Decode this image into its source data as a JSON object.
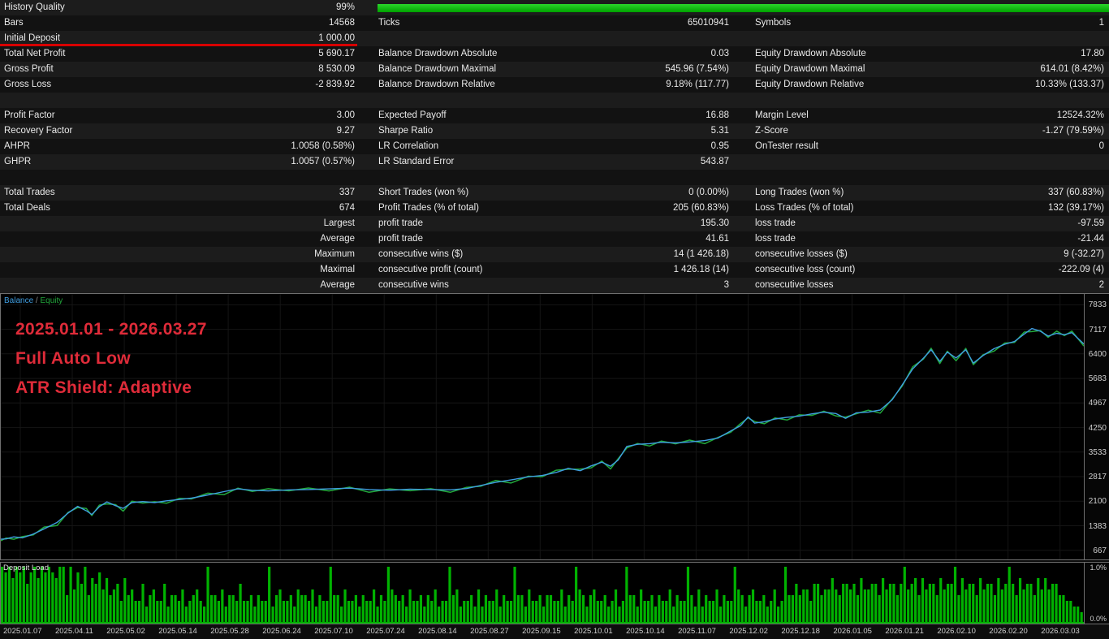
{
  "colors": {
    "balance": "#3f9de0",
    "equity": "#22a83c",
    "deposit": "#00b200",
    "hq_bar": "#00a300",
    "hq_bar_light": "#2bd52b",
    "marker_red": "#d80000",
    "annotation": "#df2b39",
    "grid": "#151515",
    "axis_text": "#cfcfcf"
  },
  "stats": {
    "rows": [
      {
        "c1l": "History Quality",
        "c1v": "99%",
        "bar": true
      },
      {
        "c1l": "Bars",
        "c1v": "14568",
        "c2l": "Ticks",
        "c2v": "65010941",
        "c3l": "Symbols",
        "c3v": "1"
      },
      {
        "c1l": "Initial Deposit",
        "c1v": "1 000.00",
        "underline": true
      },
      {
        "c1l": "Total Net Profit",
        "c1v": "5 690.17",
        "c2l": "Balance Drawdown Absolute",
        "c2v": "0.03",
        "c3l": "Equity Drawdown Absolute",
        "c3v": "17.80"
      },
      {
        "c1l": "Gross Profit",
        "c1v": "8 530.09",
        "c2l": "Balance Drawdown Maximal",
        "c2v": "545.96 (7.54%)",
        "c3l": "Equity Drawdown Maximal",
        "c3v": "614.01 (8.42%)"
      },
      {
        "c1l": "Gross Loss",
        "c1v": "-2 839.92",
        "c2l": "Balance Drawdown Relative",
        "c2v": "9.18% (117.77)",
        "c3l": "Equity Drawdown Relative",
        "c3v": "10.33% (133.37)"
      },
      {},
      {
        "c1l": "Profit Factor",
        "c1v": "3.00",
        "c2l": "Expected Payoff",
        "c2v": "16.88",
        "c3l": "Margin Level",
        "c3v": "12524.32%"
      },
      {
        "c1l": "Recovery Factor",
        "c1v": "9.27",
        "c2l": "Sharpe Ratio",
        "c2v": "5.31",
        "c3l": "Z-Score",
        "c3v": "-1.27 (79.59%)"
      },
      {
        "c1l": "AHPR",
        "c1v": "1.0058 (0.58%)",
        "c2l": "LR Correlation",
        "c2v": "0.95",
        "c3l": "OnTester result",
        "c3v": "0"
      },
      {
        "c1l": "GHPR",
        "c1v": "1.0057 (0.57%)",
        "c2l": "LR Standard Error",
        "c2v": "543.87"
      },
      {},
      {
        "c1l": "Total Trades",
        "c1v": "337",
        "c2l": "Short Trades (won %)",
        "c2v": "0 (0.00%)",
        "c3l": "Long Trades (won %)",
        "c3v": "337 (60.83%)"
      },
      {
        "c1l": "Total Deals",
        "c1v": "674",
        "c2l": "Profit Trades (% of total)",
        "c2v": "205 (60.83%)",
        "c3l": "Loss Trades (% of total)",
        "c3v": "132 (39.17%)"
      },
      {
        "c1v": "Largest",
        "c2l": "profit trade",
        "c2v": "195.30",
        "c3l": "loss trade",
        "c3v": "-97.59"
      },
      {
        "c1v": "Average",
        "c2l": "profit trade",
        "c2v": "41.61",
        "c3l": "loss trade",
        "c3v": "-21.44"
      },
      {
        "c1v": "Maximum",
        "c2l": "consecutive wins ($)",
        "c2v": "14 (1 426.18)",
        "c3l": "consecutive losses ($)",
        "c3v": "9 (-32.27)"
      },
      {
        "c1v": "Maximal",
        "c2l": "consecutive profit (count)",
        "c2v": "1 426.18 (14)",
        "c3l": "consecutive loss (count)",
        "c3v": "-222.09 (4)"
      },
      {
        "c1v": "Average",
        "c2l": "consecutive wins",
        "c2v": "3",
        "c3l": "consecutive losses",
        "c3v": "2"
      }
    ]
  },
  "chart_data": [
    {
      "type": "line",
      "legend": {
        "balance": "Balance",
        "separator": " / ",
        "equity": "Equity"
      },
      "annotations": [
        "2025.01.01 - 2026.03.27",
        "Full Auto Low",
        "ATR Shield: Adaptive"
      ],
      "ylim": [
        400,
        8150
      ],
      "y_ticks": [
        7833,
        7117,
        6400,
        5683,
        4967,
        4250,
        3533,
        2817,
        2100,
        1383,
        667
      ],
      "x_dates": [
        "2025.01.07",
        "2025.04.11",
        "2025.05.02",
        "2025.05.14",
        "2025.05.28",
        "2025.06.24",
        "2025.07.10",
        "2025.07.24",
        "2025.08.14",
        "2025.08.27",
        "2025.09.15",
        "2025.10.01",
        "2025.10.14",
        "2025.11.07",
        "2025.12.02",
        "2025.12.18",
        "2026.01.05",
        "2026.01.21",
        "2026.02.10",
        "2026.02.20",
        "2026.03.03"
      ],
      "balance": [
        [
          0,
          990
        ],
        [
          0.005,
          1000
        ],
        [
          0.012,
          1060
        ],
        [
          0.02,
          1030
        ],
        [
          0.03,
          1140
        ],
        [
          0.04,
          1290
        ],
        [
          0.052,
          1480
        ],
        [
          0.062,
          1750
        ],
        [
          0.071,
          1950
        ],
        [
          0.079,
          1820
        ],
        [
          0.084,
          1710
        ],
        [
          0.091,
          1940
        ],
        [
          0.098,
          2080
        ],
        [
          0.106,
          1970
        ],
        [
          0.113,
          1890
        ],
        [
          0.121,
          2060
        ],
        [
          0.131,
          2090
        ],
        [
          0.142,
          2060
        ],
        [
          0.153,
          2110
        ],
        [
          0.165,
          2150
        ],
        [
          0.176,
          2190
        ],
        [
          0.191,
          2280
        ],
        [
          0.206,
          2380
        ],
        [
          0.219,
          2460
        ],
        [
          0.232,
          2420
        ],
        [
          0.247,
          2400
        ],
        [
          0.266,
          2430
        ],
        [
          0.284,
          2440
        ],
        [
          0.303,
          2460
        ],
        [
          0.322,
          2480
        ],
        [
          0.34,
          2440
        ],
        [
          0.359,
          2420
        ],
        [
          0.378,
          2450
        ],
        [
          0.397,
          2440
        ],
        [
          0.415,
          2430
        ],
        [
          0.43,
          2470
        ],
        [
          0.443,
          2560
        ],
        [
          0.457,
          2650
        ],
        [
          0.471,
          2720
        ],
        [
          0.487,
          2810
        ],
        [
          0.5,
          2850
        ],
        [
          0.513,
          2940
        ],
        [
          0.524,
          3060
        ],
        [
          0.535,
          2990
        ],
        [
          0.545,
          3130
        ],
        [
          0.555,
          3240
        ],
        [
          0.563,
          3120
        ],
        [
          0.57,
          3300
        ],
        [
          0.578,
          3700
        ],
        [
          0.588,
          3760
        ],
        [
          0.599,
          3780
        ],
        [
          0.61,
          3820
        ],
        [
          0.623,
          3800
        ],
        [
          0.636,
          3830
        ],
        [
          0.65,
          3870
        ],
        [
          0.662,
          3940
        ],
        [
          0.674,
          4150
        ],
        [
          0.683,
          4300
        ],
        [
          0.69,
          4560
        ],
        [
          0.696,
          4380
        ],
        [
          0.705,
          4420
        ],
        [
          0.715,
          4500
        ],
        [
          0.726,
          4550
        ],
        [
          0.737,
          4580
        ],
        [
          0.749,
          4650
        ],
        [
          0.76,
          4700
        ],
        [
          0.771,
          4660
        ],
        [
          0.78,
          4520
        ],
        [
          0.79,
          4680
        ],
        [
          0.801,
          4700
        ],
        [
          0.812,
          4760
        ],
        [
          0.823,
          5060
        ],
        [
          0.832,
          5480
        ],
        [
          0.842,
          5960
        ],
        [
          0.852,
          6280
        ],
        [
          0.859,
          6520
        ],
        [
          0.867,
          6180
        ],
        [
          0.874,
          6450
        ],
        [
          0.882,
          6280
        ],
        [
          0.891,
          6520
        ],
        [
          0.898,
          6130
        ],
        [
          0.907,
          6350
        ],
        [
          0.917,
          6550
        ],
        [
          0.927,
          6680
        ],
        [
          0.936,
          6760
        ],
        [
          0.945,
          6980
        ],
        [
          0.952,
          7140
        ],
        [
          0.96,
          7060
        ],
        [
          0.967,
          6920
        ],
        [
          0.975,
          7000
        ],
        [
          0.982,
          6960
        ],
        [
          0.989,
          7020
        ],
        [
          1,
          6690
        ]
      ],
      "equity_offsets": [
        -45,
        25,
        -70,
        35,
        -25,
        55,
        -90,
        20,
        -35,
        65,
        -28,
        45,
        -60,
        30,
        -80,
        40
      ]
    },
    {
      "type": "bar",
      "title": "Deposit Load",
      "max_label": "1.0%",
      "min_label": "0.0%",
      "pattern_chunks": [
        "9897989689",
        "7989879949",
        "5869476857",
        "4563745336",
        "2453362443",
        "5234532944",
        "3524436334",
        "2433924533",
        "4254435243",
        "3944253342",
        "4335243954",
        "3425334243",
        "5233945233",
        "4252433524",
        "3394425334",
        "2443352439",
        "5424533423",
        "5239442533",
        "4243352433",
        "9425243352",
        "4339542453",
        "3423523944",
        "6455366455",
        "7546656475",
        "5664756646",
        "9567475664",
        "7566947566",
        "4756647569",
        "6475664757",
        "5664433221"
      ]
    }
  ]
}
